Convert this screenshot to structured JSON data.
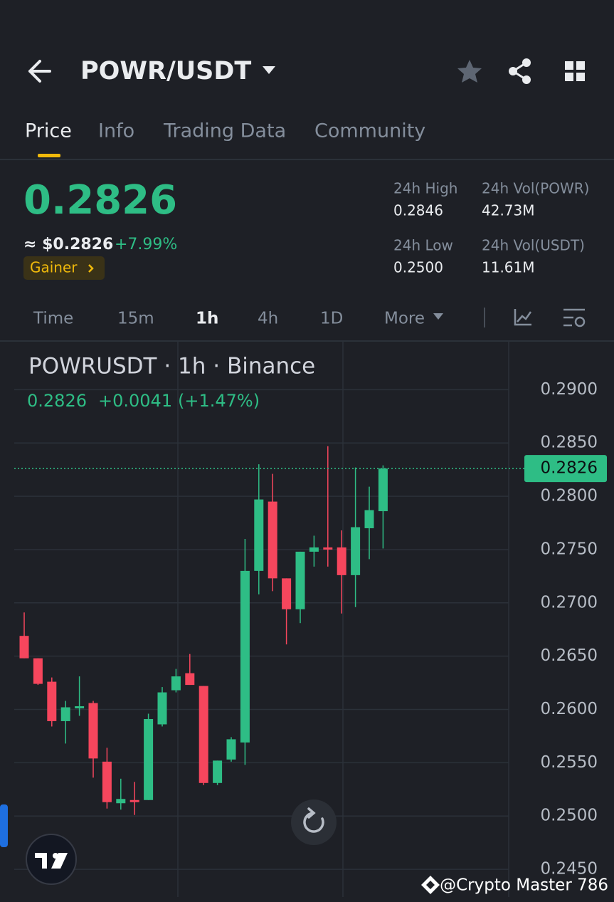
{
  "header": {
    "title": "POWR/USDT"
  },
  "tabs": [
    "Price",
    "Info",
    "Trading Data",
    "Community"
  ],
  "price": {
    "last": "0.2826",
    "usd": "≈ $0.2826",
    "change": "+7.99%",
    "badge": "Gainer"
  },
  "stats": [
    {
      "label": "24h High",
      "value": "0.2846"
    },
    {
      "label": "24h Vol(POWR)",
      "value": "42.73M"
    },
    {
      "label": "24h Low",
      "value": "0.2500"
    },
    {
      "label": "24h Vol(USDT)",
      "value": "11.61M"
    }
  ],
  "timeframes": [
    "Time",
    "15m",
    "1h",
    "4h",
    "1D",
    "More"
  ],
  "chart_data": {
    "type": "candlestick",
    "title": "POWRUSDT · 1h · Binance",
    "legend_change": "+0.0041",
    "legend_change_pct": "(+1.47%)",
    "up_color": "#2ebd85",
    "down_color": "#f6465d",
    "grid": true,
    "ylim": [
      0.2424,
      0.2945
    ],
    "yticks": [
      {
        "value": 0.29,
        "label": "0.2900"
      },
      {
        "value": 0.285,
        "label": "0.2850"
      },
      {
        "value": 0.28,
        "label": "0.2800"
      },
      {
        "value": 0.275,
        "label": "0.2750"
      },
      {
        "value": 0.27,
        "label": "0.2700"
      },
      {
        "value": 0.265,
        "label": "0.2650"
      },
      {
        "value": 0.26,
        "label": "0.2600"
      },
      {
        "value": 0.255,
        "label": "0.2550"
      },
      {
        "value": 0.25,
        "label": "0.2500"
      },
      {
        "value": 0.245,
        "label": "0.2450"
      }
    ],
    "open": [
      0.2669,
      0.2648,
      0.2626,
      0.2589,
      0.2601,
      0.2606,
      0.2551,
      0.2512,
      0.2515,
      0.2515,
      0.2586,
      0.2618,
      0.2634,
      0.2622,
      0.2531,
      0.2553,
      0.2569,
      0.273,
      0.2795,
      0.2723,
      0.2694,
      0.2748,
      0.2752,
      0.2752,
      0.2726,
      0.277,
      0.2786
    ],
    "high": [
      0.2691,
      0.2648,
      0.263,
      0.2608,
      0.2631,
      0.2608,
      0.2564,
      0.2535,
      0.2532,
      0.2596,
      0.2621,
      0.2638,
      0.2652,
      0.2622,
      0.2552,
      0.2574,
      0.276,
      0.283,
      0.2821,
      0.2723,
      0.2748,
      0.2763,
      0.2847,
      0.2768,
      0.2827,
      0.2809,
      0.2829
    ],
    "low": [
      0.2648,
      0.2623,
      0.2584,
      0.2568,
      0.2594,
      0.2536,
      0.2507,
      0.2506,
      0.2501,
      0.2515,
      0.2584,
      0.2616,
      0.2623,
      0.2529,
      0.2529,
      0.2551,
      0.2548,
      0.2708,
      0.2711,
      0.2661,
      0.2681,
      0.2734,
      0.2734,
      0.269,
      0.2696,
      0.2741,
      0.2751
    ],
    "close": [
      0.2648,
      0.2624,
      0.2589,
      0.2602,
      0.2603,
      0.2554,
      0.2513,
      0.2516,
      0.2513,
      0.2591,
      0.2616,
      0.2631,
      0.2623,
      0.2531,
      0.2552,
      0.2572,
      0.273,
      0.2797,
      0.2723,
      0.2694,
      0.2748,
      0.2752,
      0.275,
      0.2726,
      0.2771,
      0.2787,
      0.2826
    ]
  },
  "watermark": "@Crypto Master 786"
}
